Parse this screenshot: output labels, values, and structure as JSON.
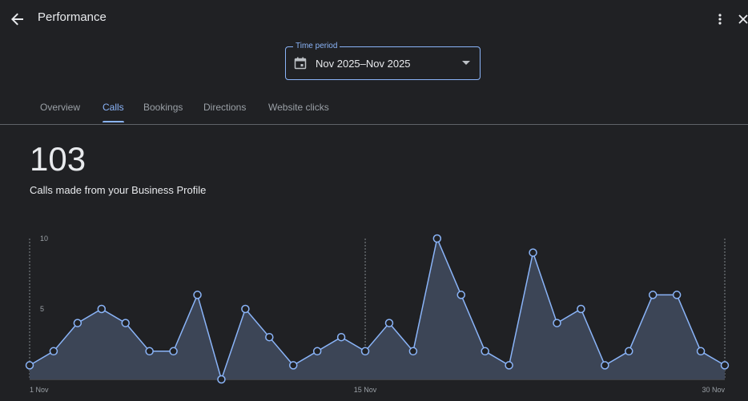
{
  "header": {
    "title": "Performance",
    "back_icon": "arrow-back-icon",
    "more_icon": "more-vert-icon",
    "close_icon": "close-icon"
  },
  "time_period": {
    "label": "Time period",
    "value": "Nov 2025–Nov 2025",
    "icon": "calendar-icon"
  },
  "tabs": [
    {
      "label": "Overview",
      "active": false
    },
    {
      "label": "Calls",
      "active": true
    },
    {
      "label": "Bookings",
      "active": false
    },
    {
      "label": "Directions",
      "active": false
    },
    {
      "label": "Website clicks",
      "active": false
    }
  ],
  "metric": {
    "value": "103",
    "caption": "Calls made from your Business Profile"
  },
  "colors": {
    "accent": "#8ab4f8",
    "background": "#202124",
    "area_fill": "#3c4556"
  },
  "chart_data": {
    "type": "area",
    "x": [
      "1 Nov",
      "2 Nov",
      "3 Nov",
      "4 Nov",
      "5 Nov",
      "6 Nov",
      "7 Nov",
      "8 Nov",
      "9 Nov",
      "10 Nov",
      "11 Nov",
      "12 Nov",
      "13 Nov",
      "14 Nov",
      "15 Nov",
      "16 Nov",
      "17 Nov",
      "18 Nov",
      "19 Nov",
      "20 Nov",
      "21 Nov",
      "22 Nov",
      "23 Nov",
      "24 Nov",
      "25 Nov",
      "26 Nov",
      "27 Nov",
      "28 Nov",
      "29 Nov",
      "30 Nov"
    ],
    "values": [
      1,
      2,
      4,
      5,
      4,
      2,
      2,
      6,
      0,
      5,
      3,
      1,
      2,
      3,
      2,
      4,
      2,
      10,
      6,
      2,
      1,
      9,
      4,
      5,
      1,
      2,
      6,
      6,
      2,
      1
    ],
    "ylim": [
      0,
      10
    ],
    "y_ticks": [
      "10",
      "5"
    ],
    "x_tick_labels": [
      "1 Nov",
      "15 Nov",
      "30 Nov"
    ]
  }
}
